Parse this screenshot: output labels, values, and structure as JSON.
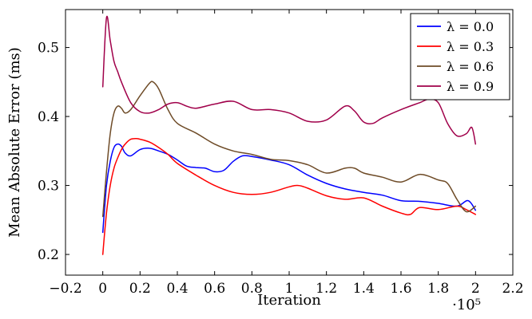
{
  "chart_data": {
    "type": "line",
    "xlabel": "Iteration",
    "ylabel": "Mean Absolute Error (ms)",
    "x_scale_label": "·10⁵",
    "xlim": [
      -0.2,
      2.2
    ],
    "ylim": [
      0.17,
      0.555
    ],
    "xticks": [
      -0.2,
      0,
      0.2,
      0.4,
      0.6,
      0.8,
      1,
      1.2,
      1.4,
      1.6,
      1.8,
      2,
      2.2
    ],
    "xtick_labels": [
      "−0.2",
      "0",
      "0.2",
      "0.4",
      "0.6",
      "0.8",
      "1",
      "1.2",
      "1.4",
      "1.6",
      "1.8",
      "2",
      "2.2"
    ],
    "yticks": [
      0.2,
      0.3,
      0.4,
      0.5
    ],
    "ytick_labels": [
      "0.2",
      "0.3",
      "0.4",
      "0.5"
    ],
    "grid": false,
    "legend_position": "top-right",
    "series": [
      {
        "name": "λ = 0.0",
        "color": "#0000ff",
        "x": [
          0,
          0.02,
          0.04,
          0.06,
          0.08,
          0.1,
          0.12,
          0.15,
          0.2,
          0.25,
          0.3,
          0.35,
          0.4,
          0.45,
          0.5,
          0.55,
          0.6,
          0.65,
          0.7,
          0.75,
          0.8,
          0.9,
          1.0,
          1.1,
          1.2,
          1.3,
          1.4,
          1.5,
          1.6,
          1.7,
          1.8,
          1.9,
          1.96,
          2.0
        ],
        "y": [
          0.232,
          0.3,
          0.335,
          0.355,
          0.36,
          0.357,
          0.347,
          0.343,
          0.352,
          0.354,
          0.35,
          0.345,
          0.337,
          0.328,
          0.326,
          0.325,
          0.32,
          0.322,
          0.335,
          0.343,
          0.342,
          0.337,
          0.33,
          0.315,
          0.303,
          0.295,
          0.29,
          0.286,
          0.278,
          0.277,
          0.274,
          0.27,
          0.278,
          0.264
        ]
      },
      {
        "name": "λ = 0.3",
        "color": "#ff0000",
        "x": [
          0,
          0.02,
          0.04,
          0.06,
          0.08,
          0.1,
          0.12,
          0.15,
          0.18,
          0.2,
          0.25,
          0.3,
          0.35,
          0.4,
          0.5,
          0.6,
          0.7,
          0.8,
          0.9,
          1.0,
          1.05,
          1.1,
          1.2,
          1.3,
          1.4,
          1.5,
          1.6,
          1.65,
          1.7,
          1.8,
          1.9,
          1.95,
          2.0
        ],
        "y": [
          0.2,
          0.26,
          0.3,
          0.325,
          0.34,
          0.352,
          0.36,
          0.367,
          0.368,
          0.367,
          0.363,
          0.355,
          0.345,
          0.332,
          0.315,
          0.3,
          0.29,
          0.287,
          0.29,
          0.298,
          0.3,
          0.296,
          0.285,
          0.28,
          0.282,
          0.27,
          0.26,
          0.258,
          0.268,
          0.265,
          0.27,
          0.265,
          0.258
        ]
      },
      {
        "name": "λ = 0.6",
        "color": "#6e4b27",
        "x": [
          0,
          0.02,
          0.04,
          0.06,
          0.08,
          0.1,
          0.12,
          0.15,
          0.2,
          0.25,
          0.27,
          0.3,
          0.35,
          0.4,
          0.5,
          0.6,
          0.7,
          0.8,
          0.9,
          1.0,
          1.1,
          1.2,
          1.3,
          1.35,
          1.4,
          1.5,
          1.6,
          1.7,
          1.8,
          1.85,
          1.9,
          1.95,
          2.0
        ],
        "y": [
          0.255,
          0.32,
          0.375,
          0.405,
          0.415,
          0.412,
          0.405,
          0.41,
          0.43,
          0.448,
          0.45,
          0.44,
          0.41,
          0.39,
          0.376,
          0.36,
          0.35,
          0.345,
          0.338,
          0.336,
          0.33,
          0.318,
          0.325,
          0.325,
          0.318,
          0.312,
          0.305,
          0.316,
          0.308,
          0.303,
          0.28,
          0.262,
          0.27
        ]
      },
      {
        "name": "λ = 0.9",
        "color": "#a0004a",
        "x": [
          0,
          0.02,
          0.04,
          0.06,
          0.08,
          0.1,
          0.15,
          0.2,
          0.25,
          0.3,
          0.35,
          0.4,
          0.45,
          0.5,
          0.6,
          0.7,
          0.8,
          0.9,
          1.0,
          1.1,
          1.2,
          1.3,
          1.35,
          1.4,
          1.45,
          1.5,
          1.6,
          1.7,
          1.75,
          1.8,
          1.85,
          1.9,
          1.95,
          1.98,
          2.0
        ],
        "y": [
          0.443,
          0.543,
          0.51,
          0.48,
          0.465,
          0.45,
          0.42,
          0.407,
          0.405,
          0.41,
          0.418,
          0.42,
          0.415,
          0.412,
          0.418,
          0.422,
          0.41,
          0.41,
          0.405,
          0.393,
          0.395,
          0.415,
          0.408,
          0.392,
          0.39,
          0.398,
          0.41,
          0.42,
          0.425,
          0.42,
          0.39,
          0.372,
          0.375,
          0.384,
          0.36
        ]
      }
    ]
  }
}
